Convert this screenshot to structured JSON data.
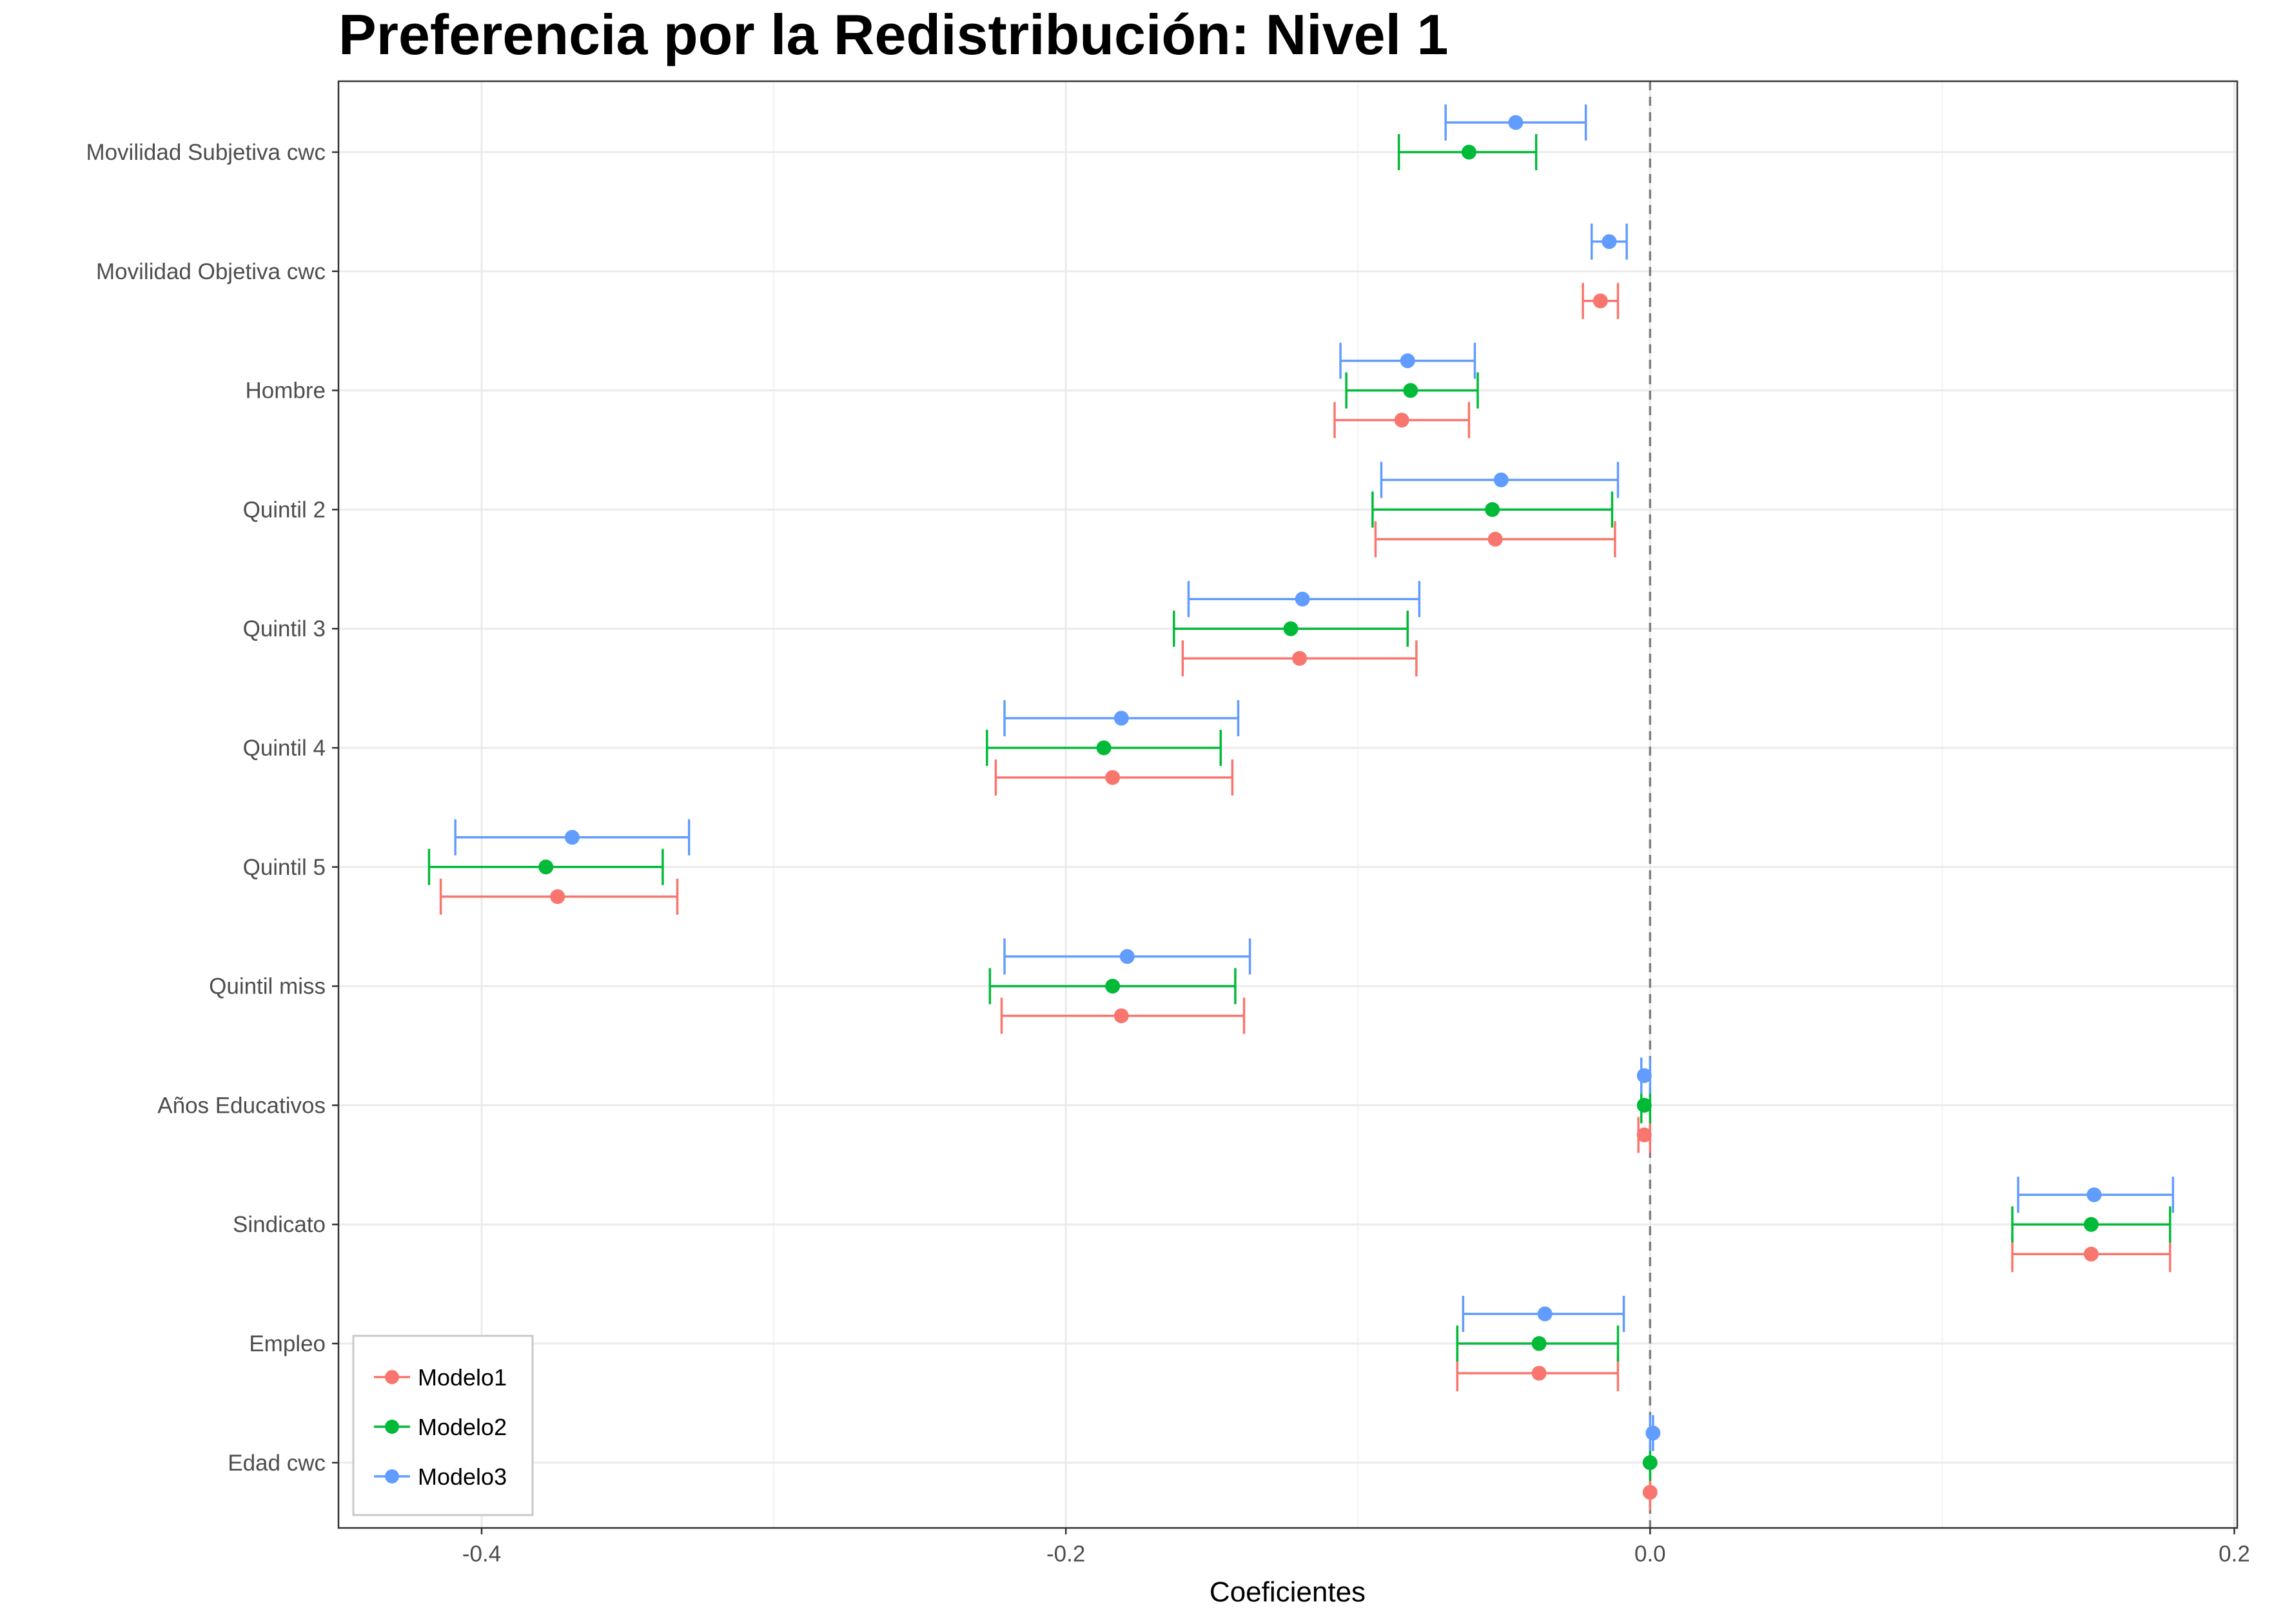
{
  "chart_data": {
    "type": "scatter",
    "title": "Preferencia por la Redistribución: Nivel 1",
    "xlabel": "Coeficientes",
    "ylabel": "",
    "xlim": [
      -0.449,
      0.201
    ],
    "xticks": [
      -0.4,
      -0.2,
      0.0,
      0.2
    ],
    "xtick_labels": [
      "-0.4",
      "-0.2",
      "0.0",
      "0.2"
    ],
    "reference_line": {
      "x": 0.0,
      "style": "dashed"
    },
    "grid": true,
    "legend_position": "bottom-left",
    "categories": [
      "Movilidad Subjetiva cwc",
      "Movilidad Objetiva cwc",
      "Hombre",
      "Quintil 2",
      "Quintil 3",
      "Quintil 4",
      "Quintil 5",
      "Quintil miss",
      "Años Educativos",
      "Sindicato",
      "Empleo",
      "Edad cwc"
    ],
    "series": [
      {
        "name": "Modelo1",
        "color": "#F8766D",
        "points": [
          {
            "category": "Movilidad Objetiva cwc",
            "estimate": -0.017,
            "low": -0.023,
            "high": -0.011
          },
          {
            "category": "Hombre",
            "estimate": -0.085,
            "low": -0.108,
            "high": -0.062
          },
          {
            "category": "Quintil 2",
            "estimate": -0.053,
            "low": -0.094,
            "high": -0.012
          },
          {
            "category": "Quintil 3",
            "estimate": -0.12,
            "low": -0.16,
            "high": -0.08
          },
          {
            "category": "Quintil 4",
            "estimate": -0.184,
            "low": -0.224,
            "high": -0.143
          },
          {
            "category": "Quintil 5",
            "estimate": -0.374,
            "low": -0.414,
            "high": -0.333
          },
          {
            "category": "Quintil miss",
            "estimate": -0.181,
            "low": -0.222,
            "high": -0.139
          },
          {
            "category": "Años Educativos",
            "estimate": -0.002,
            "low": -0.004,
            "high": 0.0
          },
          {
            "category": "Sindicato",
            "estimate": 0.151,
            "low": 0.124,
            "high": 0.178
          },
          {
            "category": "Empleo",
            "estimate": -0.038,
            "low": -0.066,
            "high": -0.011
          },
          {
            "category": "Edad cwc",
            "estimate": 0.0,
            "low": 0.0,
            "high": 0.0
          }
        ]
      },
      {
        "name": "Modelo2",
        "color": "#00BA38",
        "points": [
          {
            "category": "Movilidad Subjetiva cwc",
            "estimate": -0.062,
            "low": -0.086,
            "high": -0.039
          },
          {
            "category": "Hombre",
            "estimate": -0.082,
            "low": -0.104,
            "high": -0.059
          },
          {
            "category": "Quintil 2",
            "estimate": -0.054,
            "low": -0.095,
            "high": -0.013
          },
          {
            "category": "Quintil 3",
            "estimate": -0.123,
            "low": -0.163,
            "high": -0.083
          },
          {
            "category": "Quintil 4",
            "estimate": -0.187,
            "low": -0.227,
            "high": -0.147
          },
          {
            "category": "Quintil 5",
            "estimate": -0.378,
            "low": -0.418,
            "high": -0.338
          },
          {
            "category": "Quintil miss",
            "estimate": -0.184,
            "low": -0.226,
            "high": -0.142
          },
          {
            "category": "Años Educativos",
            "estimate": -0.002,
            "low": -0.003,
            "high": 0.0
          },
          {
            "category": "Sindicato",
            "estimate": 0.151,
            "low": 0.124,
            "high": 0.178
          },
          {
            "category": "Empleo",
            "estimate": -0.038,
            "low": -0.066,
            "high": -0.011
          },
          {
            "category": "Edad cwc",
            "estimate": 0.0,
            "low": 0.0,
            "high": 0.0
          }
        ]
      },
      {
        "name": "Modelo3",
        "color": "#619CFF",
        "points": [
          {
            "category": "Movilidad Subjetiva cwc",
            "estimate": -0.046,
            "low": -0.07,
            "high": -0.022
          },
          {
            "category": "Movilidad Objetiva cwc",
            "estimate": -0.014,
            "low": -0.02,
            "high": -0.008
          },
          {
            "category": "Hombre",
            "estimate": -0.083,
            "low": -0.106,
            "high": -0.06
          },
          {
            "category": "Quintil 2",
            "estimate": -0.051,
            "low": -0.092,
            "high": -0.011
          },
          {
            "category": "Quintil 3",
            "estimate": -0.119,
            "low": -0.158,
            "high": -0.079
          },
          {
            "category": "Quintil 4",
            "estimate": -0.181,
            "low": -0.221,
            "high": -0.141
          },
          {
            "category": "Quintil 5",
            "estimate": -0.369,
            "low": -0.409,
            "high": -0.329
          },
          {
            "category": "Quintil miss",
            "estimate": -0.179,
            "low": -0.221,
            "high": -0.137
          },
          {
            "category": "Años Educativos",
            "estimate": -0.002,
            "low": -0.003,
            "high": 0.0
          },
          {
            "category": "Sindicato",
            "estimate": 0.152,
            "low": 0.126,
            "high": 0.179
          },
          {
            "category": "Empleo",
            "estimate": -0.036,
            "low": -0.064,
            "high": -0.009
          },
          {
            "category": "Edad cwc",
            "estimate": 0.001,
            "low": 0.0,
            "high": 0.001
          }
        ]
      }
    ]
  }
}
